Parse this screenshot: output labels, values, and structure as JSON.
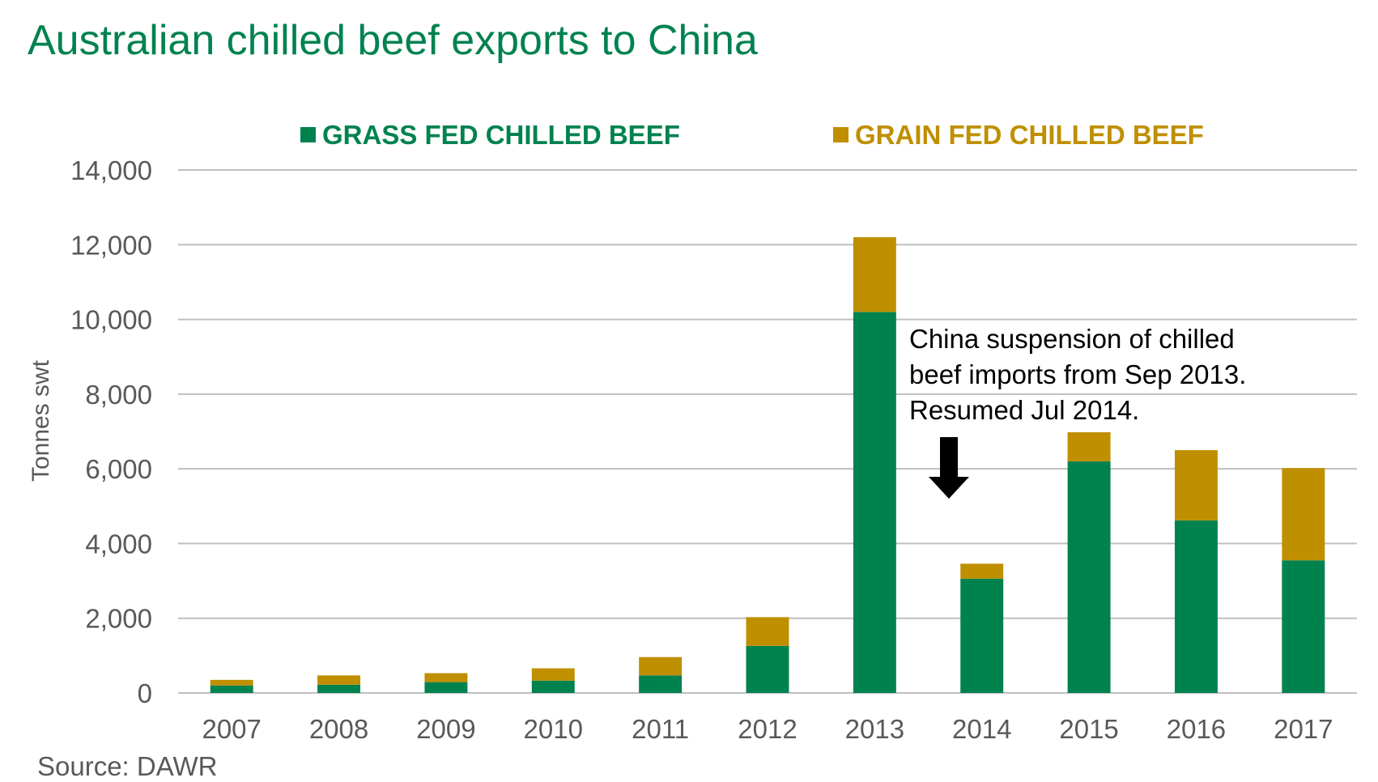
{
  "title": "Australian chilled beef exports to China",
  "source": "Source: DAWR",
  "colors": {
    "grass": "#00824F",
    "grain": "#BF8F00",
    "title": "#008250",
    "grid": "#BFBFBF",
    "axis_text": "#595959"
  },
  "chart_data": {
    "type": "bar",
    "stacked": true,
    "categories": [
      "2007",
      "2008",
      "2009",
      "2010",
      "2011",
      "2012",
      "2013",
      "2014",
      "2015",
      "2016",
      "2017"
    ],
    "series": [
      {
        "name": "GRASS FED CHILLED BEEF",
        "values": [
          200,
          220,
          290,
          330,
          470,
          1260,
          10200,
          3060,
          6200,
          4620,
          3550
        ]
      },
      {
        "name": "GRAIN FED CHILLED BEEF",
        "values": [
          150,
          250,
          240,
          330,
          490,
          770,
          2000,
          400,
          780,
          1880,
          2470
        ]
      }
    ],
    "ylabel": "Tonnes swt",
    "xlabel": "",
    "ylim": [
      0,
      14000
    ],
    "yticks": [
      "0",
      "2,000",
      "4,000",
      "6,000",
      "8,000",
      "10,000",
      "12,000",
      "14,000"
    ],
    "grid": true,
    "legend_position": "top",
    "annotation": {
      "lines": [
        "China suspension of chilled",
        "beef imports from Sep 2013.",
        "Resumed Jul 2014."
      ],
      "points_to": "2014"
    }
  }
}
